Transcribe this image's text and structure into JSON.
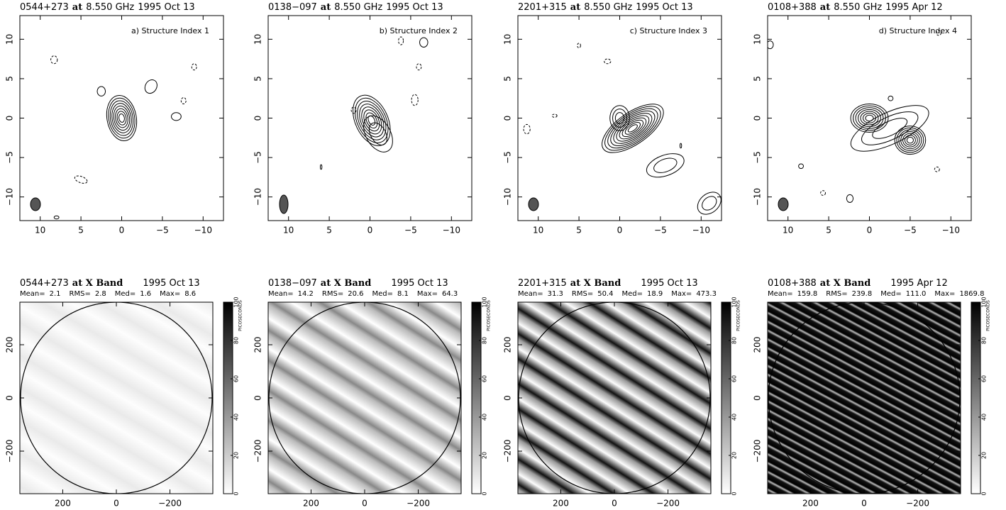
{
  "chart_data": [
    {
      "type": "contour",
      "title": {
        "source": "0544+273",
        "at": "at",
        "freq": "8.550 GHz",
        "date": "1995 Oct 13"
      },
      "annotation": "a) Structure Index 1",
      "xlim": [
        12.5,
        -12.5
      ],
      "ylim": [
        -13,
        13
      ],
      "xticks": [
        10,
        5,
        0,
        {
          "value": -5,
          "label": "−5"
        },
        {
          "value": -10,
          "label": "−10"
        }
      ],
      "yticks": [
        {
          "value": -10,
          "label": "−10"
        },
        {
          "value": -5,
          "label": "−5"
        },
        0,
        5,
        10
      ]
    },
    {
      "type": "contour",
      "title": {
        "source": "0138−097",
        "at": "at",
        "freq": "8.550 GHz",
        "date": "1995 Oct 13"
      },
      "annotation": "b) Structure Index 2",
      "xlim": [
        12.5,
        -12.5
      ],
      "ylim": [
        -13,
        13
      ],
      "xticks": [
        10,
        5,
        0,
        {
          "value": -5,
          "label": "−5"
        },
        {
          "value": -10,
          "label": "−10"
        }
      ],
      "yticks": [
        {
          "value": -10,
          "label": "−10"
        },
        {
          "value": -5,
          "label": "−5"
        },
        0,
        5,
        10
      ]
    },
    {
      "type": "contour",
      "title": {
        "source": "2201+315",
        "at": "at",
        "freq": "8.550 GHz",
        "date": "1995 Oct 13"
      },
      "annotation": "c) Structure Index 3",
      "xlim": [
        12.5,
        -12.5
      ],
      "ylim": [
        -13,
        13
      ],
      "xticks": [
        10,
        5,
        0,
        {
          "value": -5,
          "label": "−5"
        },
        {
          "value": -10,
          "label": "−10"
        }
      ],
      "yticks": [
        {
          "value": -10,
          "label": "−10"
        },
        {
          "value": -5,
          "label": "−5"
        },
        0,
        5,
        10
      ]
    },
    {
      "type": "contour",
      "title": {
        "source": "0108+388",
        "at": "at",
        "freq": "8.550 GHz",
        "date": "1995 Apr 12"
      },
      "annotation": "d) Structure Index 4",
      "xlim": [
        12.5,
        -12.5
      ],
      "ylim": [
        -13,
        13
      ],
      "xticks": [
        10,
        5,
        0,
        {
          "value": -5,
          "label": "−5"
        },
        {
          "value": -10,
          "label": "−10"
        }
      ],
      "yticks": [
        {
          "value": -10,
          "label": "−10"
        },
        {
          "value": -5,
          "label": "−5"
        },
        0,
        5,
        10
      ]
    },
    {
      "type": "image",
      "title": {
        "source": "0544+273",
        "band": "at X Band",
        "date": "1995 Oct 13"
      },
      "stats": [
        {
          "name": "Mean=",
          "value": 2.1
        },
        {
          "name": "RMS=",
          "value": 2.8
        },
        {
          "name": "Med=",
          "value": 1.6
        },
        {
          "name": "Max=",
          "value": 8.6
        }
      ],
      "xlim": [
        360,
        -360
      ],
      "ylim": [
        -360,
        360
      ],
      "xticks": [
        200,
        0,
        {
          "value": -200,
          "label": "−200"
        }
      ],
      "yticks": [
        {
          "value": -200,
          "label": "−200"
        },
        0,
        200
      ],
      "colorbar": {
        "label": "PICOSECONDS",
        "lim": [
          0,
          100
        ],
        "ticks": [
          0,
          20,
          40,
          60,
          80,
          100
        ]
      }
    },
    {
      "type": "image",
      "title": {
        "source": "0138−097",
        "band": "at X Band",
        "date": "1995 Oct 13"
      },
      "stats": [
        {
          "name": "Mean=",
          "value": 14.2
        },
        {
          "name": "RMS=",
          "value": 20.6
        },
        {
          "name": "Med=",
          "value": 8.1
        },
        {
          "name": "Max=",
          "value": 64.3
        }
      ],
      "xlim": [
        360,
        -360
      ],
      "ylim": [
        -360,
        360
      ],
      "xticks": [
        200,
        0,
        {
          "value": -200,
          "label": "−200"
        }
      ],
      "yticks": [
        {
          "value": -200,
          "label": "−200"
        },
        0,
        200
      ],
      "colorbar": {
        "label": "PICOSECONDS",
        "lim": [
          0,
          100
        ],
        "ticks": [
          0,
          20,
          40,
          60,
          80,
          100
        ]
      }
    },
    {
      "type": "image",
      "title": {
        "source": "2201+315",
        "band": "at X Band",
        "date": "1995 Oct 13"
      },
      "stats": [
        {
          "name": "Mean=",
          "value": 31.3
        },
        {
          "name": "RMS=",
          "value": 50.4
        },
        {
          "name": "Med=",
          "value": 18.9
        },
        {
          "name": "Max=",
          "value": 473.3
        }
      ],
      "xlim": [
        360,
        -360
      ],
      "ylim": [
        -360,
        360
      ],
      "xticks": [
        200,
        0,
        {
          "value": -200,
          "label": "−200"
        }
      ],
      "yticks": [
        {
          "value": -200,
          "label": "−200"
        },
        0,
        200
      ],
      "colorbar": {
        "label": "PICOSECONDS",
        "lim": [
          0,
          100
        ],
        "ticks": [
          0,
          20,
          40,
          60,
          80,
          100
        ]
      }
    },
    {
      "type": "image",
      "title": {
        "source": "0108+388",
        "band": "at X Band",
        "date": "1995 Apr 12"
      },
      "stats": [
        {
          "name": "Mean=",
          "value": 159.8
        },
        {
          "name": "RMS=",
          "value": 239.8
        },
        {
          "name": "Med=",
          "value": {
            "value": 111,
            "label": "111.0"
          }
        },
        {
          "name": "Max=",
          "value": 1869.8
        }
      ],
      "xlim": [
        360,
        -360
      ],
      "ylim": [
        -360,
        360
      ],
      "xticks": [
        200,
        0,
        {
          "value": -200,
          "label": "−200"
        }
      ],
      "yticks": [
        {
          "value": -200,
          "label": "−200"
        },
        0,
        200
      ],
      "colorbar": {
        "label": "PICOSECONDS",
        "lim": [
          0,
          100
        ],
        "ticks": [
          0,
          20,
          40,
          60,
          80,
          100
        ]
      }
    }
  ]
}
